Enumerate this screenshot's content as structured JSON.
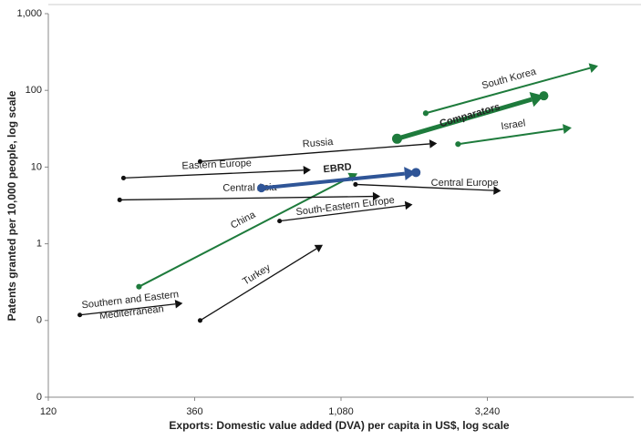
{
  "chart_data": {
    "type": "arrow",
    "x_label": "Exports: Domestic value added (DVA) per capita in US$, log scale",
    "y_label": "Patents granted per 10,000 people, log scale",
    "xscale": "log",
    "yscale": "log",
    "xlim": [
      120,
      9720
    ],
    "ylim": [
      0.01,
      1000
    ],
    "xticks": [
      120,
      360,
      {
        "value": 1080,
        "label": "1,080"
      },
      {
        "value": 3240,
        "label": "3,240"
      }
    ],
    "yticks": [
      {
        "value": 0.01,
        "label": "0"
      },
      {
        "value": 0.1,
        "label": "0"
      },
      1,
      10,
      100,
      {
        "value": 1000,
        "label": "1,000"
      }
    ],
    "series": [
      {
        "name": "Southern and Eastern Mediterranean",
        "color": "#111111",
        "x": [
          152,
          329
        ],
        "y": [
          0.118,
          0.168
        ]
      },
      {
        "name": "Turkey",
        "color": "#111111",
        "x": [
          375,
          942
        ],
        "y": [
          0.1,
          0.97
        ]
      },
      {
        "name": "China",
        "color": "#1e7b3c",
        "x": [
          237,
          1222
        ],
        "y": [
          0.276,
          8.25
        ]
      },
      {
        "name": "Central Asia",
        "color": "#111111",
        "x": [
          205,
          1450
        ],
        "y": [
          3.73,
          4.16
        ]
      },
      {
        "name": "Eastern Europe",
        "color": "#111111",
        "x": [
          211,
          861
        ],
        "y": [
          7.2,
          9.2
        ]
      },
      {
        "name": "Russia",
        "color": "#111111",
        "x": [
          375,
          2220
        ],
        "y": [
          11.8,
          20.4
        ]
      },
      {
        "name": "South-Eastern Europe",
        "color": "#111111",
        "x": [
          681,
          1848
        ],
        "y": [
          1.98,
          3.25
        ]
      },
      {
        "name": "Central Europe",
        "color": "#111111",
        "x": [
          1204,
          3590
        ],
        "y": [
          5.94,
          4.9
        ]
      },
      {
        "name": "EBRD",
        "color": "#2f5597",
        "x": [
          594,
          1896
        ],
        "y": [
          5.32,
          8.5
        ]
      },
      {
        "name": "Comparators",
        "color": "#1e7b3c",
        "x": [
          1645,
          4950
        ],
        "y": [
          23.4,
          84.9
        ]
      },
      {
        "name": "South Korea",
        "color": "#1e7b3c",
        "x": [
          2040,
          7440
        ],
        "y": [
          50.4,
          209
        ]
      },
      {
        "name": "Israel",
        "color": "#1e7b3c",
        "x": [
          2600,
          6100
        ],
        "y": [
          19.9,
          32.5
        ]
      }
    ]
  }
}
